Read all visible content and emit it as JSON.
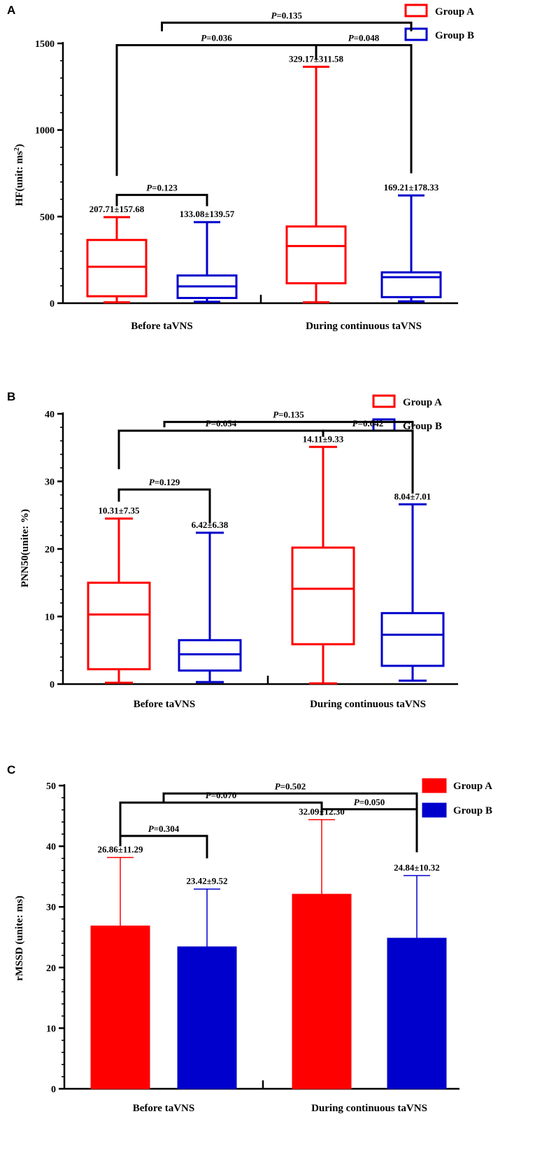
{
  "colors": {
    "group_a": "#ff0000",
    "group_b": "#0000cc",
    "axis": "#000000"
  },
  "chart_data": [
    {
      "panel": "A",
      "type": "box",
      "ylabel": "HF(unit: ms",
      "ylabel_sup": "2",
      "ylabel_end": ")",
      "ylim": [
        0,
        1500
      ],
      "yticks": [
        0,
        500,
        1000,
        1500
      ],
      "yticklabels": [
        "0",
        "500",
        "1000",
        "1500"
      ],
      "categories": [
        "Before taVNS",
        "During continuous taVNS"
      ],
      "legend": [
        "Group A",
        "Group B"
      ],
      "series": [
        {
          "name": "Group A",
          "boxes": [
            {
              "min": 5,
              "q1": 40,
              "median": 210,
              "q3": 365,
              "max": 497,
              "label": "207.71±157.68"
            },
            {
              "min": 5,
              "q1": 115,
              "median": 330,
              "q3": 443,
              "max": 1365,
              "label": "329.17±311.58"
            }
          ]
        },
        {
          "name": "Group B",
          "boxes": [
            {
              "min": 8,
              "q1": 30,
              "median": 97,
              "q3": 160,
              "max": 468,
              "label": "133.08±139.57"
            },
            {
              "min": 10,
              "q1": 35,
              "median": 150,
              "q3": 178,
              "max": 622,
              "label": "169.21±178.33"
            }
          ]
        }
      ],
      "annotations": [
        {
          "text": "P=0.123",
          "from": [
            0,
            0
          ],
          "to": [
            0,
            1
          ],
          "level": 625,
          "left_end": 560,
          "right_end": 560
        },
        {
          "text": "P=0.036",
          "from": [
            0,
            0
          ],
          "to": [
            1,
            0
          ],
          "level": 1490,
          "left_end": 735,
          "right_end": 1405
        },
        {
          "text": "P=0.048",
          "from": [
            1,
            0
          ],
          "to": [
            1,
            1
          ],
          "level": 1490,
          "left_end": 1405,
          "right_end": 750
        },
        {
          "text": "P=0.135",
          "from": [
            0,
            0.5
          ],
          "to": [
            1,
            1
          ],
          "level": 1620,
          "left_end": 1570,
          "right_end": 1570
        }
      ]
    },
    {
      "panel": "B",
      "type": "box",
      "ylabel": "PNN50(unite: %)",
      "ylim": [
        0,
        40
      ],
      "yticks": [
        0,
        10,
        20,
        30,
        40
      ],
      "yticklabels": [
        "0",
        "10",
        "20",
        "30",
        "40"
      ],
      "categories": [
        "Before taVNS",
        "During continuous taVNS"
      ],
      "legend": [
        "Group A",
        "Group B"
      ],
      "series": [
        {
          "name": "Group A",
          "boxes": [
            {
              "min": 0.2,
              "q1": 2.2,
              "median": 10.3,
              "q3": 15.0,
              "max": 24.5,
              "label": "10.31±7.35"
            },
            {
              "min": 0.1,
              "q1": 5.9,
              "median": 14.1,
              "q3": 20.2,
              "max": 35.1,
              "label": "14.11±9.33"
            }
          ]
        },
        {
          "name": "Group B",
          "boxes": [
            {
              "min": 0.3,
              "q1": 2.0,
              "median": 4.4,
              "q3": 6.5,
              "max": 22.4,
              "label": "6.42±6.38"
            },
            {
              "min": 0.5,
              "q1": 2.7,
              "median": 7.3,
              "q3": 10.5,
              "max": 26.6,
              "label": "8.04±7.01"
            }
          ]
        }
      ],
      "annotations": [
        {
          "text": "P=0.129",
          "from": [
            0,
            0
          ],
          "to": [
            0,
            1
          ],
          "level": 28.8,
          "left_end": 27.0,
          "right_end": 23.8
        },
        {
          "text": "P=0.054",
          "from": [
            0,
            0
          ],
          "to": [
            1,
            0
          ],
          "level": 37.5,
          "left_end": 31.8,
          "right_end": 36.6
        },
        {
          "text": "P=0.042",
          "from": [
            1,
            0
          ],
          "to": [
            1,
            1
          ],
          "level": 37.5,
          "left_end": 36.6,
          "right_end": 28.2
        },
        {
          "text": "P=0.135",
          "from": [
            0,
            0.5
          ],
          "to": [
            1,
            1
          ],
          "level": 38.8,
          "left_end": 38.0,
          "right_end": 38.0
        }
      ]
    },
    {
      "panel": "C",
      "type": "bar",
      "ylabel": "rMSSD (unite: ms)",
      "ylim": [
        0,
        50
      ],
      "yticks": [
        0,
        10,
        20,
        30,
        40,
        50
      ],
      "yticklabels": [
        "0",
        "10",
        "20",
        "30",
        "40",
        "50"
      ],
      "categories": [
        "Before taVNS",
        "During continuous taVNS"
      ],
      "legend": [
        "Group A",
        "Group B"
      ],
      "series": [
        {
          "name": "Group A",
          "values": [
            26.86,
            32.09
          ],
          "errors": [
            11.29,
            12.3
          ],
          "labels": [
            "26.86±11.29",
            "32.09±12.30"
          ]
        },
        {
          "name": "Group B",
          "values": [
            23.42,
            24.84
          ],
          "errors": [
            9.52,
            10.32
          ],
          "labels": [
            "23.42±9.52",
            "24.84±10.32"
          ]
        }
      ],
      "annotations": [
        {
          "text": "P=0.304",
          "from": [
            0,
            0
          ],
          "to": [
            0,
            1
          ],
          "level": 41.7,
          "left_end": 40.0,
          "right_end": 38.0
        },
        {
          "text": "P=0.070",
          "from": [
            0,
            0
          ],
          "to": [
            1,
            0
          ],
          "level": 47.2,
          "left_end": 41.5,
          "right_end": 46.0
        },
        {
          "text": "P=0.050",
          "from": [
            1,
            0
          ],
          "to": [
            1,
            1
          ],
          "level": 46.1,
          "left_end": 45.1,
          "right_end": 39.0
        },
        {
          "text": "P=0.502",
          "from": [
            0,
            0.5
          ],
          "to": [
            1,
            1
          ],
          "level": 48.7,
          "left_end": 47.3,
          "right_end": 45.1
        }
      ]
    }
  ]
}
